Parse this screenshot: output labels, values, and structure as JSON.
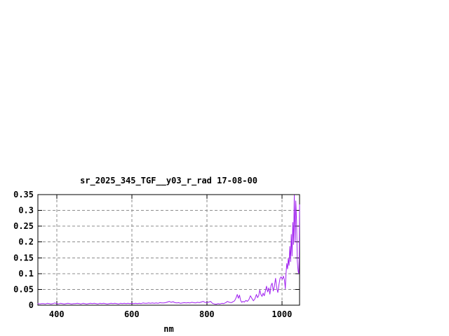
{
  "page": {
    "background_color": "#ffffff"
  },
  "chart_data": {
    "type": "line",
    "title": "sr_2025_345_TGF__y03_r_rad 17-08-00",
    "xlabel": "nm",
    "ylabel": "",
    "xlim": [
      350,
      1047
    ],
    "ylim": [
      0,
      0.35
    ],
    "xticks": [
      400,
      600,
      800,
      1000
    ],
    "xtick_labels": [
      "400",
      "600",
      "800",
      "1000"
    ],
    "yticks": [
      0,
      0.05,
      0.1,
      0.15,
      0.2,
      0.25,
      0.3,
      0.35
    ],
    "ytick_labels": [
      "0",
      "0.05",
      "0.1",
      "0.15",
      "0.2",
      "0.25",
      "0.3",
      "0.35"
    ],
    "grid": true,
    "grid_style": "dashed",
    "legend": "none",
    "line_color": "#a020f0",
    "grid_color": "#8c8c8c",
    "border_color": "#000000",
    "text_color": "#000000",
    "series": [
      {
        "name": "sr_2025_345_TGF__y03_r_rad",
        "points": [
          [
            350,
            0.005
          ],
          [
            355,
            0.004
          ],
          [
            360,
            0.005
          ],
          [
            365,
            0.005
          ],
          [
            370,
            0.004
          ],
          [
            375,
            0.006
          ],
          [
            380,
            0.005
          ],
          [
            385,
            0.004
          ],
          [
            390,
            0.005
          ],
          [
            395,
            0.007
          ],
          [
            400,
            0.005
          ],
          [
            405,
            0.004
          ],
          [
            410,
            0.006
          ],
          [
            415,
            0.005
          ],
          [
            420,
            0.004
          ],
          [
            425,
            0.005
          ],
          [
            430,
            0.006
          ],
          [
            435,
            0.005
          ],
          [
            440,
            0.004
          ],
          [
            445,
            0.005
          ],
          [
            450,
            0.005
          ],
          [
            455,
            0.006
          ],
          [
            460,
            0.005
          ],
          [
            465,
            0.004
          ],
          [
            470,
            0.006
          ],
          [
            475,
            0.005
          ],
          [
            480,
            0.004
          ],
          [
            485,
            0.005
          ],
          [
            490,
            0.006
          ],
          [
            495,
            0.005
          ],
          [
            500,
            0.006
          ],
          [
            505,
            0.005
          ],
          [
            510,
            0.004
          ],
          [
            515,
            0.006
          ],
          [
            520,
            0.005
          ],
          [
            525,
            0.006
          ],
          [
            530,
            0.005
          ],
          [
            535,
            0.004
          ],
          [
            540,
            0.005
          ],
          [
            545,
            0.006
          ],
          [
            550,
            0.005
          ],
          [
            555,
            0.006
          ],
          [
            560,
            0.005
          ],
          [
            565,
            0.004
          ],
          [
            570,
            0.006
          ],
          [
            575,
            0.005
          ],
          [
            580,
            0.006
          ],
          [
            585,
            0.005
          ],
          [
            590,
            0.006
          ],
          [
            595,
            0.005
          ],
          [
            600,
            0.006
          ],
          [
            605,
            0.005
          ],
          [
            610,
            0.006
          ],
          [
            615,
            0.005
          ],
          [
            620,
            0.006
          ],
          [
            625,
            0.005
          ],
          [
            630,
            0.007
          ],
          [
            635,
            0.006
          ],
          [
            640,
            0.006
          ],
          [
            645,
            0.007
          ],
          [
            650,
            0.006
          ],
          [
            655,
            0.007
          ],
          [
            660,
            0.006
          ],
          [
            665,
            0.007
          ],
          [
            670,
            0.006
          ],
          [
            675,
            0.008
          ],
          [
            680,
            0.007
          ],
          [
            685,
            0.007
          ],
          [
            690,
            0.008
          ],
          [
            695,
            0.01
          ],
          [
            700,
            0.012
          ],
          [
            705,
            0.009
          ],
          [
            710,
            0.011
          ],
          [
            715,
            0.008
          ],
          [
            720,
            0.007
          ],
          [
            725,
            0.008
          ],
          [
            730,
            0.006
          ],
          [
            735,
            0.007
          ],
          [
            740,
            0.008
          ],
          [
            745,
            0.007
          ],
          [
            750,
            0.008
          ],
          [
            755,
            0.007
          ],
          [
            760,
            0.009
          ],
          [
            765,
            0.008
          ],
          [
            770,
            0.007
          ],
          [
            775,
            0.009
          ],
          [
            780,
            0.008
          ],
          [
            785,
            0.01
          ],
          [
            790,
            0.012
          ],
          [
            795,
            0.009
          ],
          [
            800,
            0.008
          ],
          [
            805,
            0.01
          ],
          [
            810,
            0.012
          ],
          [
            815,
            0.006
          ],
          [
            820,
            0.004
          ],
          [
            825,
            0.003
          ],
          [
            830,
            0.005
          ],
          [
            835,
            0.004
          ],
          [
            840,
            0.006
          ],
          [
            845,
            0.005
          ],
          [
            850,
            0.008
          ],
          [
            855,
            0.012
          ],
          [
            860,
            0.009
          ],
          [
            865,
            0.008
          ],
          [
            870,
            0.011
          ],
          [
            874,
            0.014
          ],
          [
            878,
            0.024
          ],
          [
            881,
            0.034
          ],
          [
            884,
            0.022
          ],
          [
            887,
            0.032
          ],
          [
            890,
            0.015
          ],
          [
            893,
            0.009
          ],
          [
            896,
            0.012
          ],
          [
            900,
            0.01
          ],
          [
            904,
            0.015
          ],
          [
            908,
            0.012
          ],
          [
            912,
            0.018
          ],
          [
            916,
            0.03
          ],
          [
            920,
            0.022
          ],
          [
            924,
            0.014
          ],
          [
            928,
            0.02
          ],
          [
            932,
            0.034
          ],
          [
            935,
            0.024
          ],
          [
            938,
            0.03
          ],
          [
            941,
            0.048
          ],
          [
            944,
            0.034
          ],
          [
            947,
            0.028
          ],
          [
            950,
            0.038
          ],
          [
            953,
            0.03
          ],
          [
            956,
            0.045
          ],
          [
            959,
            0.06
          ],
          [
            962,
            0.042
          ],
          [
            965,
            0.055
          ],
          [
            968,
            0.035
          ],
          [
            971,
            0.062
          ],
          [
            974,
            0.07
          ],
          [
            977,
            0.045
          ],
          [
            980,
            0.06
          ],
          [
            983,
            0.085
          ],
          [
            986,
            0.055
          ],
          [
            989,
            0.04
          ],
          [
            992,
            0.065
          ],
          [
            995,
            0.085
          ],
          [
            998,
            0.09
          ],
          [
            1001,
            0.082
          ],
          [
            1004,
            0.092
          ],
          [
            1007,
            0.078
          ],
          [
            1009,
            0.052
          ],
          [
            1011,
            0.1
          ],
          [
            1013,
            0.132
          ],
          [
            1015,
            0.115
          ],
          [
            1017,
            0.148
          ],
          [
            1019,
            0.126
          ],
          [
            1021,
            0.186
          ],
          [
            1023,
            0.138
          ],
          [
            1025,
            0.224
          ],
          [
            1027,
            0.156
          ],
          [
            1029,
            0.262
          ],
          [
            1031,
            0.192
          ],
          [
            1033,
            0.348
          ],
          [
            1035,
            0.2
          ],
          [
            1037,
            0.33
          ],
          [
            1039,
            0.268
          ],
          [
            1041,
            0.14
          ],
          [
            1043,
            0.108
          ],
          [
            1045,
            0.1
          ],
          [
            1046,
            0.155
          ],
          [
            1047,
            0.318
          ]
        ]
      }
    ]
  }
}
